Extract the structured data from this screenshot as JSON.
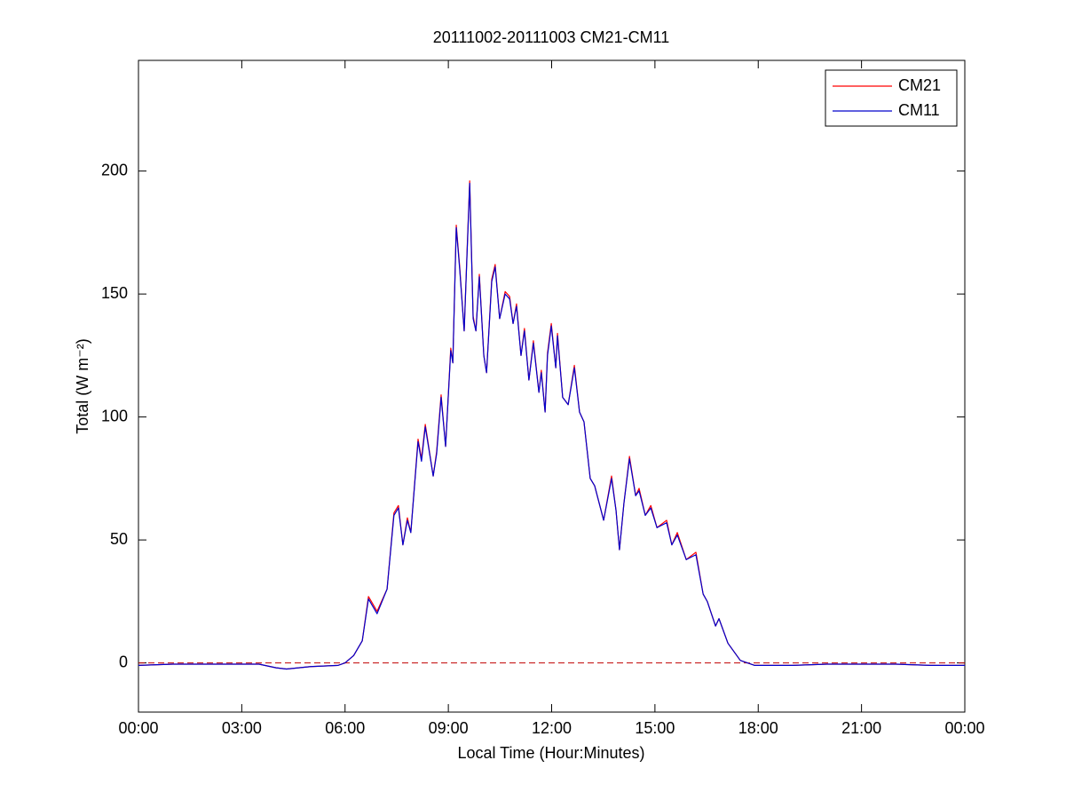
{
  "chart_data": {
    "type": "line",
    "title": "20111002-20111003 CM21-CM11",
    "x_label": "Local Time (Hour:Minutes)",
    "y_label": "Total (W m⁻²)",
    "xlim": [
      0,
      24
    ],
    "xticks": [
      {
        "value": 0,
        "label": "00:00"
      },
      {
        "value": 3,
        "label": "03:00"
      },
      {
        "value": 6,
        "label": "06:00"
      },
      {
        "value": 9,
        "label": "09:00"
      },
      {
        "value": 12,
        "label": "12:00"
      },
      {
        "value": 15,
        "label": "15:00"
      },
      {
        "value": 18,
        "label": "18:00"
      },
      {
        "value": 21,
        "label": "21:00"
      },
      {
        "value": 24,
        "label": "00:00"
      }
    ],
    "ylim": [
      -20,
      245
    ],
    "yticks": [
      0,
      50,
      100,
      150,
      200
    ],
    "grid": false,
    "legend": "top-right",
    "reference_line": {
      "value": 0,
      "color": "#c00000",
      "dash": "dashed"
    },
    "x": [
      0,
      1,
      2,
      3,
      3.5,
      4,
      4.3,
      5,
      5.8,
      6.0,
      6.25,
      6.5,
      6.68,
      6.93,
      7.22,
      7.42,
      7.55,
      7.68,
      7.81,
      7.91,
      8.12,
      8.22,
      8.33,
      8.56,
      8.66,
      8.79,
      8.92,
      9.07,
      9.13,
      9.23,
      9.33,
      9.46,
      9.54,
      9.62,
      9.72,
      9.8,
      9.9,
      10.03,
      10.11,
      10.26,
      10.36,
      10.49,
      10.65,
      10.78,
      10.88,
      10.98,
      11.11,
      11.21,
      11.34,
      11.47,
      11.63,
      11.7,
      11.81,
      11.88,
      11.99,
      12.12,
      12.17,
      12.32,
      12.48,
      12.66,
      12.81,
      12.94,
      13.12,
      13.25,
      13.51,
      13.74,
      13.87,
      13.97,
      14.1,
      14.26,
      14.44,
      14.54,
      14.72,
      14.88,
      15.06,
      15.34,
      15.49,
      15.65,
      15.91,
      16.19,
      16.4,
      16.52,
      16.76,
      16.86,
      17.12,
      17.48,
      17.89,
      19,
      20,
      21,
      22,
      23,
      24
    ],
    "series": [
      {
        "name": "CM21",
        "color": "#ff0000",
        "values": [
          -1,
          -0.5,
          -0.5,
          -0.5,
          -0.5,
          -2,
          -2.5,
          -1.5,
          -1,
          0,
          3,
          9,
          27,
          21,
          30,
          61,
          64,
          48,
          59,
          53,
          91,
          83,
          97,
          76,
          86,
          109,
          88,
          128,
          122,
          178,
          161,
          135,
          166,
          196,
          141,
          135,
          158,
          125,
          118,
          156,
          162,
          140,
          151,
          149,
          138,
          146,
          125,
          136,
          115,
          131,
          110,
          119,
          102,
          126,
          138,
          120,
          134,
          108,
          105,
          121,
          102,
          98,
          75,
          72,
          58,
          76,
          62,
          46,
          65,
          84,
          68,
          71,
          60,
          64,
          55,
          58,
          48,
          53,
          42,
          45,
          28,
          25,
          15,
          18,
          8,
          1,
          -1,
          -1,
          -0.5,
          -0.5,
          -0.5,
          -1,
          -1
        ]
      },
      {
        "name": "CM11",
        "color": "#0000cc",
        "values": [
          -1,
          -0.5,
          -0.5,
          -0.5,
          -0.5,
          -2,
          -2.5,
          -1.5,
          -1,
          0,
          3,
          9,
          26,
          20,
          30,
          60,
          63,
          48,
          58,
          53,
          90,
          82,
          96,
          76,
          85,
          108,
          88,
          127,
          122,
          177,
          160,
          135,
          165,
          195,
          140,
          135,
          157,
          125,
          118,
          155,
          161,
          140,
          150,
          148,
          138,
          145,
          125,
          135,
          115,
          130,
          110,
          118,
          102,
          125,
          137,
          120,
          133,
          108,
          105,
          120,
          102,
          98,
          75,
          72,
          58,
          75,
          62,
          46,
          65,
          83,
          68,
          70,
          60,
          63,
          55,
          57,
          48,
          52,
          42,
          44,
          28,
          25,
          15,
          18,
          8,
          1,
          -1,
          -1,
          -0.5,
          -0.5,
          -0.5,
          -1,
          -1
        ]
      }
    ]
  }
}
